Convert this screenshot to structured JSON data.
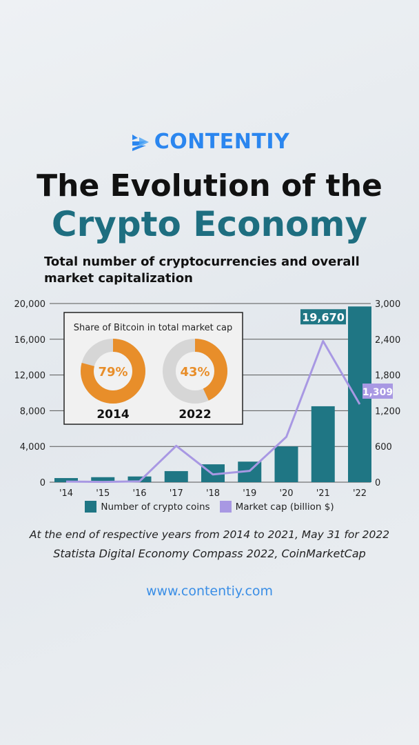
{
  "brand": {
    "name": "CONTENTIY",
    "color": "#2b86ef",
    "url": "www.contentiy.com"
  },
  "title": {
    "line1": "The Evolution of the",
    "line2": "Crypto Economy"
  },
  "subtitle": "Total number of cryptocurrencies and overall market capitalization",
  "note": "At the end of respective years from 2014 to 2021, May 31 for 2022",
  "source": "Statista Digital Economy Compass 2022, CoinMarketCap",
  "chart_data": {
    "type": "bar+line",
    "categories": [
      "'14",
      "'15",
      "'16",
      "'17",
      "'18",
      "'19",
      "'20",
      "'21",
      "'22"
    ],
    "left_axis": {
      "ticks": [
        "0",
        "4,000",
        "8,000",
        "12,000",
        "16,000",
        "20,000"
      ],
      "ylim": [
        0,
        20000
      ]
    },
    "right_axis": {
      "ticks": [
        "0",
        "600",
        "1,200",
        "1,800",
        "2,400",
        "3,000"
      ],
      "ylim": [
        0,
        3000
      ]
    },
    "grid": true,
    "series": [
      {
        "name": "Number of crypto coins",
        "type": "bar",
        "axis": "left",
        "color": "#1f7684",
        "values": [
          460,
          560,
          640,
          1240,
          2000,
          2300,
          4000,
          8500,
          19670
        ]
      },
      {
        "name": "Market cap (billion $)",
        "type": "line",
        "axis": "right",
        "color": "#a898e3",
        "values": [
          10,
          5,
          15,
          610,
          130,
          190,
          760,
          2370,
          1309
        ]
      }
    ],
    "callouts": [
      {
        "series": 0,
        "index": 8,
        "label": "19,670"
      },
      {
        "series": 1,
        "index": 8,
        "label": "1,309"
      }
    ],
    "legend_placement": "bottom",
    "inset": {
      "title": "Share of Bitcoin in total market cap",
      "donuts": [
        {
          "year": "2014",
          "value": 79,
          "label": "79%"
        },
        {
          "year": "2022",
          "value": 43,
          "label": "43%"
        }
      ],
      "colors": {
        "bitcoin": "#e88e2a",
        "rest": "#d6d6d6"
      }
    }
  }
}
